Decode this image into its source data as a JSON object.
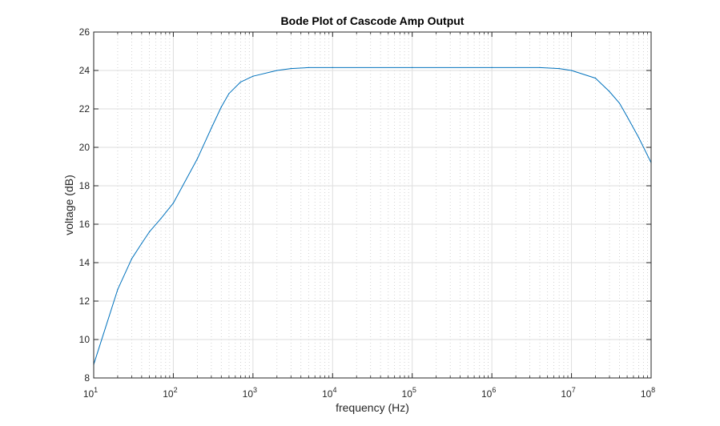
{
  "chart_data": {
    "type": "line",
    "title": "Bode Plot of Cascode Amp Output",
    "xlabel": "frequency (Hz)",
    "ylabel": "voltage (dB)",
    "xscale": "log",
    "xlim": [
      10,
      100000000
    ],
    "ylim": [
      8,
      26
    ],
    "grid": true,
    "minor_grid": true,
    "legend": "none",
    "x_ticks": [
      {
        "base": "10",
        "exp": "1"
      },
      {
        "base": "10",
        "exp": "2"
      },
      {
        "base": "10",
        "exp": "3"
      },
      {
        "base": "10",
        "exp": "4"
      },
      {
        "base": "10",
        "exp": "5"
      },
      {
        "base": "10",
        "exp": "6"
      },
      {
        "base": "10",
        "exp": "7"
      },
      {
        "base": "10",
        "exp": "8"
      }
    ],
    "y_ticks": [
      "8",
      "10",
      "12",
      "14",
      "16",
      "18",
      "20",
      "22",
      "24",
      "26"
    ],
    "series": [
      {
        "color": "#0072BD",
        "x": [
          10,
          20,
          30,
          40,
          50,
          70,
          100,
          200,
          300,
          400,
          500,
          700,
          1000,
          2000,
          3000,
          5000,
          10000,
          100000,
          1000000,
          4000000,
          7000000,
          10000000,
          20000000,
          30000000,
          40000000,
          50000000,
          70000000,
          100000000
        ],
        "y": [
          8.7,
          12.6,
          14.2,
          15.0,
          15.6,
          16.3,
          17.1,
          19.4,
          21.0,
          22.1,
          22.8,
          23.4,
          23.7,
          24.0,
          24.1,
          24.15,
          24.15,
          24.15,
          24.15,
          24.15,
          24.1,
          24.0,
          23.6,
          22.9,
          22.3,
          21.6,
          20.5,
          19.2
        ]
      }
    ]
  }
}
